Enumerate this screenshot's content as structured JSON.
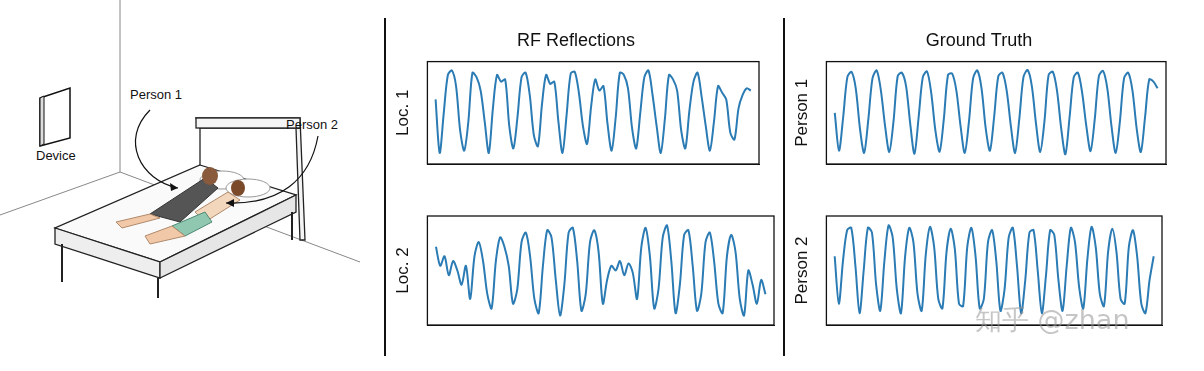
{
  "illustration": {
    "device": "Device",
    "person_1": "Person 1",
    "person_2": "Person 2"
  },
  "watermark": "知乎 @zhan",
  "chart_data": [
    {
      "type": "line",
      "title": "RF Reflections",
      "ylabel": "Loc. 1",
      "tick_labels": false,
      "grid": false,
      "color": "#2b7bb4",
      "xlim": [
        -2,
        79
      ],
      "ylim": [
        -1.15,
        1.15
      ],
      "x": [
        0,
        1,
        2,
        3,
        4,
        5,
        6,
        7,
        8,
        9,
        10,
        11,
        12,
        13,
        14,
        15,
        16,
        17,
        18,
        19,
        20,
        21,
        22,
        23,
        24,
        25,
        26,
        27,
        28,
        29,
        30,
        31,
        32,
        33,
        34,
        35,
        36,
        37,
        38,
        39,
        40,
        41,
        42,
        43,
        44,
        45,
        46,
        47,
        48,
        49,
        50,
        51,
        52,
        53,
        54,
        55,
        56,
        57,
        58,
        59,
        60,
        61,
        62,
        63,
        64,
        65,
        66,
        67,
        68,
        69,
        70,
        71,
        72,
        73,
        74,
        75,
        76,
        77
      ],
      "values": [
        0.3,
        -0.9,
        0.0,
        0.85,
        0.95,
        0.6,
        -0.4,
        -0.85,
        -0.2,
        0.9,
        0.8,
        0.5,
        -0.2,
        -0.9,
        0.1,
        0.85,
        0.7,
        0.75,
        -0.3,
        -0.8,
        -0.1,
        0.8,
        0.9,
        0.4,
        -0.5,
        -0.75,
        0.2,
        0.85,
        0.65,
        0.7,
        -0.2,
        -0.9,
        -0.05,
        0.88,
        0.92,
        0.45,
        -0.3,
        -0.7,
        0.15,
        0.75,
        0.5,
        0.6,
        -0.25,
        -0.85,
        -0.1,
        0.9,
        0.85,
        0.55,
        -0.35,
        -0.8,
        0.0,
        0.8,
        0.95,
        0.4,
        -0.3,
        -0.9,
        -0.15,
        0.85,
        0.75,
        0.5,
        -0.4,
        -0.8,
        0.05,
        0.7,
        0.9,
        0.35,
        -0.3,
        -0.85,
        -0.2,
        0.6,
        0.45,
        0.3,
        -0.45,
        -0.6,
        0.1,
        0.4,
        0.55,
        0.5
      ]
    },
    {
      "type": "line",
      "ylabel": "Loc. 2",
      "tick_labels": false,
      "grid": false,
      "color": "#2b7bb4",
      "xlim": [
        -2,
        79
      ],
      "ylim": [
        -1.15,
        1.15
      ],
      "x": [
        0,
        1,
        2,
        3,
        4,
        5,
        6,
        7,
        8,
        9,
        10,
        11,
        12,
        13,
        14,
        15,
        16,
        17,
        18,
        19,
        20,
        21,
        22,
        23,
        24,
        25,
        26,
        27,
        28,
        29,
        30,
        31,
        32,
        33,
        34,
        35,
        36,
        37,
        38,
        39,
        40,
        41,
        42,
        43,
        44,
        45,
        46,
        47,
        48,
        49,
        50,
        51,
        52,
        53,
        54,
        55,
        56,
        57,
        58,
        59,
        60,
        61,
        62,
        63,
        64,
        65,
        66,
        67,
        68,
        69,
        70,
        71,
        72,
        73,
        74,
        75,
        76,
        77
      ],
      "values": [
        0.5,
        0.1,
        0.3,
        -0.1,
        0.2,
        0.0,
        -0.3,
        0.1,
        -0.6,
        0.3,
        0.6,
        0.2,
        -0.5,
        -0.8,
        0.2,
        0.7,
        0.5,
        0.1,
        -0.7,
        -0.4,
        0.6,
        0.8,
        0.3,
        -0.6,
        -0.9,
        0.1,
        0.85,
        0.7,
        -0.2,
        -0.95,
        -0.3,
        0.8,
        0.9,
        0.2,
        -0.85,
        -0.5,
        0.6,
        0.85,
        0.4,
        -0.7,
        -0.2,
        0.1,
        0.0,
        0.2,
        -0.1,
        0.15,
        -0.05,
        -0.6,
        0.5,
        0.9,
        0.3,
        -0.8,
        -0.4,
        0.7,
        0.95,
        0.2,
        -0.9,
        -0.3,
        0.75,
        0.85,
        0.1,
        -0.85,
        -0.5,
        0.6,
        0.8,
        0.2,
        -0.7,
        -0.9,
        0.3,
        0.75,
        0.4,
        -0.6,
        -0.95,
        0.0,
        -0.3,
        -0.7,
        -0.2,
        -0.5
      ]
    },
    {
      "type": "line",
      "title": "Ground Truth",
      "ylabel": "Person 1",
      "tick_labels": false,
      "grid": false,
      "color": "#2b7bb4",
      "xlim": [
        -2,
        79
      ],
      "ylim": [
        -1.15,
        1.15
      ],
      "x": [
        0,
        1,
        2,
        3,
        4,
        5,
        6,
        7,
        8,
        9,
        10,
        11,
        12,
        13,
        14,
        15,
        16,
        17,
        18,
        19,
        20,
        21,
        22,
        23,
        24,
        25,
        26,
        27,
        28,
        29,
        30,
        31,
        32,
        33,
        34,
        35,
        36,
        37,
        38,
        39,
        40,
        41,
        42,
        43,
        44,
        45,
        46,
        47,
        48,
        49,
        50,
        51,
        52,
        53,
        54,
        55,
        56,
        57,
        58,
        59,
        60,
        61,
        62,
        63,
        64,
        65,
        66,
        67,
        68,
        69,
        70,
        71,
        72,
        73,
        74,
        75,
        76,
        77
      ],
      "values": [
        0.0,
        -0.85,
        -0.1,
        0.8,
        0.92,
        0.55,
        -0.35,
        -0.9,
        -0.15,
        0.78,
        0.95,
        0.5,
        -0.3,
        -0.88,
        -0.2,
        0.82,
        0.9,
        0.6,
        -0.25,
        -0.92,
        -0.1,
        0.8,
        0.93,
        0.45,
        -0.4,
        -0.87,
        -0.15,
        0.85,
        0.88,
        0.5,
        -0.3,
        -0.9,
        -0.2,
        0.78,
        0.95,
        0.55,
        -0.35,
        -0.85,
        -0.1,
        0.82,
        0.9,
        0.5,
        -0.3,
        -0.9,
        -0.15,
        0.8,
        0.96,
        0.6,
        -0.25,
        -0.88,
        -0.2,
        0.85,
        0.92,
        0.5,
        -0.35,
        -0.93,
        -0.1,
        0.8,
        0.9,
        0.45,
        -0.3,
        -0.86,
        -0.15,
        0.83,
        0.94,
        0.55,
        -0.3,
        -0.9,
        -0.2,
        0.78,
        0.9,
        0.5,
        -0.35,
        -0.88,
        -0.1,
        0.75,
        0.7,
        0.55
      ]
    },
    {
      "type": "line",
      "ylabel": "Person 2",
      "tick_labels": false,
      "grid": false,
      "color": "#2b7bb4",
      "xlim": [
        -2,
        79
      ],
      "ylim": [
        -1.15,
        1.15
      ],
      "x": [
        0,
        1,
        2,
        3,
        4,
        5,
        6,
        7,
        8,
        9,
        10,
        11,
        12,
        13,
        14,
        15,
        16,
        17,
        18,
        19,
        20,
        21,
        22,
        23,
        24,
        25,
        26,
        27,
        28,
        29,
        30,
        31,
        32,
        33,
        34,
        35,
        36,
        37,
        38,
        39,
        40,
        41,
        42,
        43,
        44,
        45,
        46,
        47,
        48,
        49,
        50,
        51,
        52,
        53,
        54,
        55,
        56,
        57,
        58,
        59,
        60,
        61,
        62,
        63,
        64,
        65,
        66,
        67,
        68,
        69,
        70,
        71,
        72,
        73,
        74,
        75,
        76,
        77
      ],
      "values": [
        0.3,
        -0.7,
        0.2,
        0.85,
        0.9,
        0.1,
        -0.9,
        0.0,
        0.9,
        0.8,
        -0.3,
        -0.85,
        0.2,
        0.95,
        0.7,
        -0.4,
        -0.9,
        0.3,
        0.9,
        0.6,
        -0.5,
        -0.85,
        0.35,
        0.92,
        0.5,
        -0.6,
        -0.8,
        0.4,
        0.88,
        0.45,
        -0.7,
        -0.75,
        0.5,
        0.9,
        0.3,
        -0.8,
        -0.6,
        0.6,
        0.85,
        0.2,
        -0.85,
        -0.4,
        0.7,
        0.9,
        0.1,
        -0.9,
        -0.2,
        0.8,
        0.85,
        0.0,
        -0.9,
        -0.1,
        0.85,
        0.75,
        -0.2,
        -0.85,
        0.1,
        0.9,
        0.6,
        -0.35,
        -0.8,
        0.25,
        0.92,
        0.5,
        -0.5,
        -0.75,
        0.4,
        0.88,
        0.4,
        -0.6,
        -0.7,
        0.5,
        0.85,
        0.3,
        -0.7,
        -0.9,
        -0.2,
        0.3
      ]
    }
  ]
}
